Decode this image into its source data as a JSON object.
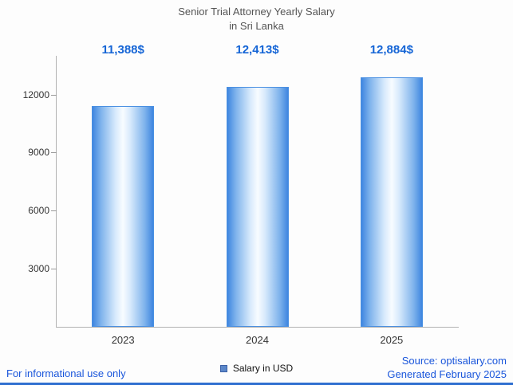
{
  "chart_data": {
    "type": "bar",
    "title_line1": "Senior Trial Attorney Yearly Salary",
    "title_line2": "in Sri Lanka",
    "categories": [
      "2023",
      "2024",
      "2025"
    ],
    "values": [
      11388,
      12413,
      12884
    ],
    "value_labels": [
      "11,388$",
      "12,413$",
      "12,884$"
    ],
    "series_name": "Salary in USD",
    "xlabel": "",
    "ylabel": "",
    "ylim": [
      0,
      14000
    ],
    "yticks": [
      3000,
      6000,
      9000,
      12000
    ],
    "grid": false,
    "legend_position": "bottom"
  },
  "legend": {
    "label": "Salary in USD"
  },
  "footer": {
    "disclaimer": "For informational use only",
    "source": "Source: optisalary.com",
    "generated": "Generated February 2025"
  },
  "colors": {
    "accent_text": "#1565d6",
    "bar_edge": "#3f86e0",
    "bar_center": "#f8fcff",
    "axis": "#b3b3b3",
    "title": "#555555",
    "footer_link": "#1a56db"
  }
}
